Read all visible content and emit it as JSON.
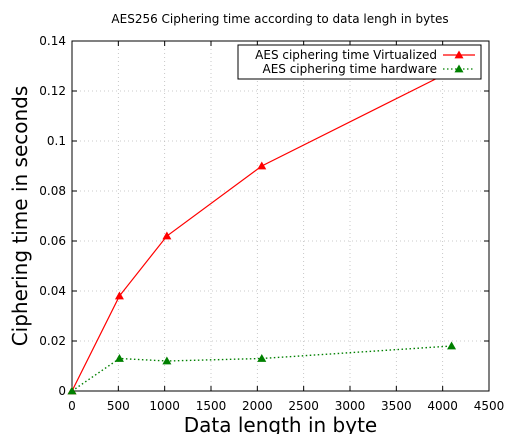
{
  "chart_data": {
    "type": "line",
    "title": "AES256 Ciphering time according to data lengh in bytes",
    "xlabel": "Data length in byte",
    "ylabel": "Ciphering time in seconds",
    "xlim": [
      0,
      4500
    ],
    "ylim": [
      0,
      0.14
    ],
    "xticks": [
      "0",
      "500",
      "1000",
      "1500",
      "2000",
      "2500",
      "3000",
      "3500",
      "4000",
      "4500"
    ],
    "yticks": [
      "0",
      "0.02",
      "0.04",
      "0.06",
      "0.08",
      "0.1",
      "0.12",
      "0.14"
    ],
    "grid": true,
    "legend_position": "top-right",
    "series": [
      {
        "name": "AES ciphering time Virtualized",
        "color": "#ff0000",
        "line_style": "solid",
        "marker": "triangle",
        "x": [
          0,
          512,
          1024,
          2048,
          4096
        ],
        "y": [
          0,
          0.038,
          0.062,
          0.09,
          0.128
        ]
      },
      {
        "name": "AES ciphering time hardware",
        "color": "#008000",
        "line_style": "dotted",
        "marker": "triangle",
        "x": [
          0,
          512,
          1024,
          2048,
          4096
        ],
        "y": [
          0,
          0.013,
          0.012,
          0.013,
          0.018
        ]
      }
    ]
  }
}
